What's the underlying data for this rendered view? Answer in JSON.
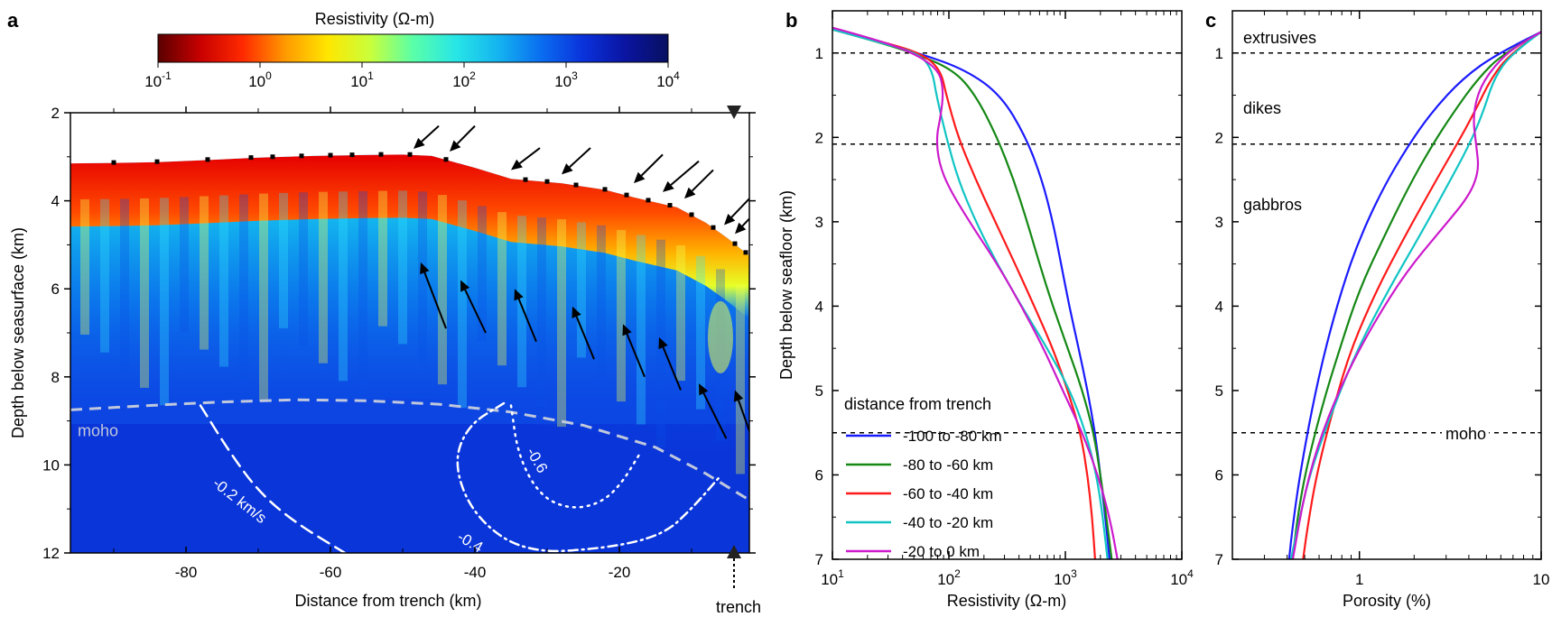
{
  "colorbar": {
    "title": "Resistivity (Ω-m)",
    "ticks": [
      {
        "base": "10",
        "exp": "-1"
      },
      {
        "base": "10",
        "exp": "0"
      },
      {
        "base": "10",
        "exp": "1"
      },
      {
        "base": "10",
        "exp": "2"
      },
      {
        "base": "10",
        "exp": "3"
      },
      {
        "base": "10",
        "exp": "4"
      }
    ],
    "colors": [
      "#5a0000",
      "#c80000",
      "#ff2a00",
      "#ff9a00",
      "#ffe600",
      "#c8ff3c",
      "#5affa8",
      "#28e6e6",
      "#14b4f0",
      "#0a6ef0",
      "#0a32dc",
      "#0a14a0",
      "#081060"
    ]
  },
  "chart_data": [
    {
      "panel": "a",
      "type": "heatmap",
      "xlabel": "Distance from trench (km)",
      "ylabel": "Depth below seasurface (km)",
      "xlim": [
        -96,
        -2
      ],
      "ylim": [
        12,
        2
      ],
      "xticks": [
        "-80",
        "-60",
        "-40",
        "-20"
      ],
      "yticks": [
        "2",
        "4",
        "6",
        "8",
        "10",
        "12"
      ],
      "seafloor": {
        "x": [
          -96,
          -90,
          -84,
          -78,
          -70,
          -62,
          -55,
          -50,
          -46,
          -40,
          -36,
          -35,
          -28,
          -22,
          -18,
          -12,
          -8,
          -5,
          -2
        ],
        "y": [
          3.15,
          3.14,
          3.12,
          3.08,
          3.02,
          2.98,
          2.96,
          2.95,
          2.98,
          3.25,
          3.45,
          3.5,
          3.6,
          3.75,
          3.92,
          4.15,
          4.5,
          4.85,
          5.25
        ]
      },
      "moho": {
        "label": "moho",
        "x": [
          -96,
          -85,
          -75,
          -65,
          -55,
          -45,
          -35,
          -25,
          -15,
          -8,
          -2
        ],
        "y": [
          8.75,
          8.65,
          8.57,
          8.52,
          8.54,
          8.62,
          8.8,
          9.1,
          9.6,
          10.2,
          10.8
        ]
      },
      "velocity_contours": [
        {
          "label": "-0.2 km/s",
          "style": "dashed",
          "x": [
            -78,
            -74,
            -70,
            -65,
            -58
          ],
          "y": [
            8.65,
            9.7,
            10.6,
            11.3,
            12.0
          ]
        },
        {
          "label": "-0.4",
          "style": "dashdot",
          "x": [
            -36,
            -41,
            -43,
            -40,
            -33,
            -22,
            -14,
            -10,
            -6
          ],
          "y": [
            8.6,
            9.1,
            10.0,
            11.2,
            12.0,
            11.9,
            11.6,
            11.0,
            10.25
          ]
        },
        {
          "label": "-0.6",
          "style": "dotted",
          "x": [
            -35,
            -34,
            -31,
            -27,
            -23,
            -20,
            -17
          ],
          "y": [
            8.65,
            9.8,
            10.7,
            11.0,
            10.9,
            10.5,
            9.7
          ]
        }
      ],
      "arrows_down": [
        {
          "x1": -45,
          "y1": 2.3,
          "x2": -48.5,
          "y2": 2.82
        },
        {
          "x1": -40,
          "y1": 2.3,
          "x2": -43.5,
          "y2": 2.88
        },
        {
          "x1": -31,
          "y1": 2.8,
          "x2": -35,
          "y2": 3.3
        },
        {
          "x1": -24,
          "y1": 2.8,
          "x2": -28,
          "y2": 3.4
        },
        {
          "x1": -14,
          "y1": 2.95,
          "x2": -18,
          "y2": 3.6
        },
        {
          "x1": -9,
          "y1": 3.1,
          "x2": -14,
          "y2": 3.8
        },
        {
          "x1": -7,
          "y1": 3.3,
          "x2": -11,
          "y2": 3.95
        },
        {
          "x1": -2,
          "y1": 3.95,
          "x2": -5.5,
          "y2": 4.55
        },
        {
          "x1": -0.5,
          "y1": 4.15,
          "x2": -4,
          "y2": 4.75
        }
      ],
      "arrows_up": [
        {
          "x1": -44,
          "y1": 6.9,
          "x2": -47.5,
          "y2": 5.4
        },
        {
          "x1": -38.5,
          "y1": 7.0,
          "x2": -42,
          "y2": 5.8
        },
        {
          "x1": -31.5,
          "y1": 7.2,
          "x2": -34.5,
          "y2": 6.0
        },
        {
          "x1": -23.5,
          "y1": 7.6,
          "x2": -26.5,
          "y2": 6.4
        },
        {
          "x1": -16.5,
          "y1": 8.0,
          "x2": -19.5,
          "y2": 6.8
        },
        {
          "x1": -11.5,
          "y1": 8.3,
          "x2": -14.5,
          "y2": 7.1
        },
        {
          "x1": -5.2,
          "y1": 9.4,
          "x2": -9,
          "y2": 8.15
        },
        {
          "x1": -1.2,
          "y1": 9.6,
          "x2": -4,
          "y2": 8.3
        }
      ],
      "trench_label": "trench"
    },
    {
      "panel": "b",
      "type": "line",
      "xlabel": "Resistivity (Ω-m)",
      "ylabel": "Depth below seafloor (km)",
      "xscale": "log",
      "xlim": [
        10,
        10000
      ],
      "ylim": [
        7,
        0.5
      ],
      "xticks": [
        {
          "base": "10",
          "exp": "1"
        },
        {
          "base": "10",
          "exp": "2"
        },
        {
          "base": "10",
          "exp": "3"
        },
        {
          "base": "10",
          "exp": "4"
        }
      ],
      "yticks": [
        "1",
        "2",
        "3",
        "4",
        "5",
        "6",
        "7"
      ],
      "hlines": [
        1.0,
        2.08,
        5.5
      ],
      "legend_title": "distance from trench",
      "legend_position": "bottom-left",
      "series": [
        {
          "name": "-100 to -80 km",
          "color": "#1a1aff",
          "depth": [
            0.72,
            0.85,
            1.0,
            1.2,
            1.5,
            2.0,
            2.5,
            3.0,
            3.5,
            4.0,
            4.5,
            5.0,
            5.5,
            6.0,
            6.5,
            7.0
          ],
          "resistivity": [
            10,
            22,
            55,
            140,
            280,
            460,
            630,
            780,
            920,
            1080,
            1300,
            1550,
            1800,
            2000,
            2200,
            2400
          ]
        },
        {
          "name": "-80 to -60 km",
          "color": "#158815",
          "depth": [
            0.72,
            0.85,
            1.0,
            1.2,
            1.5,
            2.0,
            2.5,
            3.0,
            3.5,
            4.0,
            4.5,
            5.0,
            5.5,
            6.0,
            6.5,
            7.0
          ],
          "resistivity": [
            10,
            22,
            50,
            110,
            170,
            260,
            360,
            470,
            600,
            780,
            1050,
            1400,
            1750,
            2000,
            2250,
            2500
          ]
        },
        {
          "name": "-60 to -40 km",
          "color": "#ff1a1a",
          "depth": [
            0.72,
            0.85,
            1.0,
            1.2,
            1.5,
            2.0,
            2.5,
            3.0,
            3.5,
            4.0,
            4.5,
            5.0,
            5.5,
            6.0,
            6.5,
            7.0
          ],
          "resistivity": [
            10,
            24,
            58,
            85,
            95,
            120,
            170,
            250,
            370,
            540,
            780,
            1050,
            1350,
            1550,
            1700,
            1800
          ]
        },
        {
          "name": "-40 to -20 km",
          "color": "#10c4c4",
          "depth": [
            0.72,
            0.85,
            1.0,
            1.2,
            1.5,
            2.0,
            2.5,
            3.0,
            3.5,
            4.0,
            4.5,
            5.0,
            5.5,
            6.0,
            6.5,
            7.0
          ],
          "resistivity": [
            10,
            22,
            55,
            72,
            78,
            95,
            120,
            170,
            260,
            420,
            700,
            1100,
            1500,
            1850,
            2100,
            2300
          ]
        },
        {
          "name": "-20 to 0 km",
          "color": "#cc1acc",
          "depth": [
            0.7,
            0.85,
            1.0,
            1.2,
            1.45,
            1.75,
            2.0,
            2.3,
            2.6,
            3.0,
            3.5,
            4.0,
            4.5,
            5.0,
            5.5,
            6.0,
            6.5,
            7.0
          ],
          "resistivity": [
            10,
            25,
            50,
            82,
            90,
            85,
            78,
            82,
            100,
            150,
            260,
            420,
            650,
            950,
            1400,
            1900,
            2400,
            2800
          ]
        }
      ]
    },
    {
      "panel": "c",
      "type": "line",
      "xlabel": "Porosity (%)",
      "xscale": "log",
      "xlim": [
        0.2,
        10
      ],
      "ylim": [
        7,
        0.5
      ],
      "xticks": [
        "1",
        "10"
      ],
      "yticks": [
        "1",
        "2",
        "3",
        "4",
        "5",
        "6",
        "7"
      ],
      "hlines": [
        1.0,
        2.08,
        5.5
      ],
      "layer_labels": [
        "extrusives",
        "dikes",
        "gabbros",
        "moho"
      ],
      "series": [
        {
          "name": "-100 to -80 km",
          "color": "#1a1aff",
          "depth": [
            0.75,
            1.0,
            1.3,
            1.7,
            2.1,
            2.6,
            3.2,
            3.8,
            4.5,
            5.2,
            6.0,
            6.6,
            7.0
          ],
          "porosity": [
            10,
            5.8,
            3.7,
            2.5,
            1.85,
            1.35,
            1.0,
            0.8,
            0.65,
            0.55,
            0.47,
            0.43,
            0.41
          ]
        },
        {
          "name": "-80 to -60 km",
          "color": "#158815",
          "depth": [
            0.75,
            1.0,
            1.3,
            1.7,
            2.1,
            2.6,
            3.2,
            3.8,
            4.5,
            5.2,
            6.0,
            6.6,
            7.0
          ],
          "porosity": [
            10,
            6.2,
            4.5,
            3.3,
            2.5,
            1.85,
            1.35,
            1.0,
            0.78,
            0.62,
            0.5,
            0.45,
            0.43
          ]
        },
        {
          "name": "-60 to -40 km",
          "color": "#ff1a1a",
          "depth": [
            0.75,
            1.0,
            1.3,
            1.7,
            2.1,
            2.6,
            3.2,
            3.8,
            4.5,
            5.2,
            6.0,
            6.6,
            7.0
          ],
          "porosity": [
            10,
            6.8,
            5.3,
            4.3,
            3.4,
            2.5,
            1.75,
            1.25,
            0.9,
            0.72,
            0.58,
            0.52,
            0.49
          ]
        },
        {
          "name": "-40 to -20 km",
          "color": "#10c4c4",
          "depth": [
            0.75,
            1.0,
            1.3,
            1.7,
            2.1,
            2.6,
            3.2,
            3.8,
            4.5,
            5.2,
            6.0,
            6.6,
            7.0
          ],
          "porosity": [
            10,
            6.9,
            5.5,
            4.8,
            4.0,
            3.0,
            2.1,
            1.45,
            0.98,
            0.72,
            0.53,
            0.46,
            0.42
          ]
        },
        {
          "name": "-20 to 0 km",
          "color": "#cc1acc",
          "depth": [
            0.75,
            0.9,
            1.1,
            1.4,
            1.75,
            2.1,
            2.4,
            2.7,
            3.1,
            3.6,
            4.2,
            4.8,
            5.5,
            6.2,
            7.0
          ],
          "porosity": [
            10,
            7.5,
            5.8,
            4.6,
            4.2,
            4.4,
            4.55,
            4.0,
            2.8,
            1.8,
            1.2,
            0.85,
            0.62,
            0.5,
            0.43
          ]
        }
      ]
    }
  ],
  "panels": {
    "a": "a",
    "b": "b",
    "c": "c"
  }
}
